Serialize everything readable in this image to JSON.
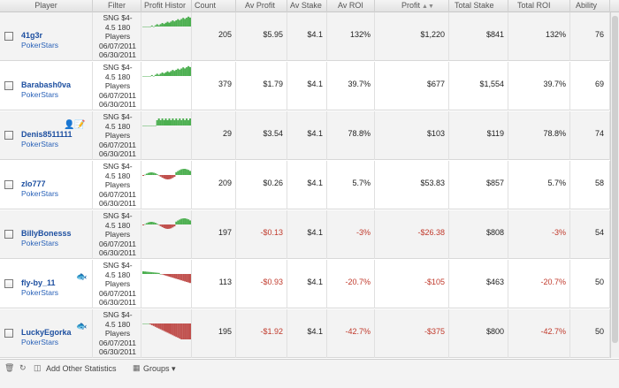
{
  "columns": {
    "player": "Player",
    "filter": "Filter",
    "profit_history": "Profit Histor",
    "count": "Count",
    "av_profit": "Av Profit",
    "av_stake": "Av Stake",
    "av_roi": "Av ROI",
    "profit": "Profit",
    "total_stake": "Total Stake",
    "total_roi": "Total ROI",
    "ability": "Ability"
  },
  "rows": [
    {
      "name": "41g3r",
      "site": "PokerStars",
      "filter": [
        "SNG $4-",
        "4.5 180",
        "Players",
        "06/07/2011",
        "06/30/2011"
      ],
      "count": "205",
      "av_profit": "$5.95",
      "av_stake": "$4.1",
      "av_roi": "132%",
      "profit": "$1,220",
      "total_stake": "$841",
      "total_roi": "132%",
      "ability": "76",
      "negative": false,
      "icons": []
    },
    {
      "name": "Barabash0va",
      "site": "PokerStars",
      "filter": [
        "SNG $4-",
        "4.5 180",
        "Players",
        "06/07/2011",
        "06/30/2011"
      ],
      "count": "379",
      "av_profit": "$1.79",
      "av_stake": "$4.1",
      "av_roi": "39.7%",
      "profit": "$677",
      "total_stake": "$1,554",
      "total_roi": "39.7%",
      "ability": "69",
      "negative": false,
      "icons": []
    },
    {
      "name": "Denis8511111",
      "site": "PokerStars",
      "filter": [
        "SNG $4-",
        "4.5 180",
        "Players",
        "06/07/2011",
        "06/30/2011"
      ],
      "count": "29",
      "av_profit": "$3.54",
      "av_stake": "$4.1",
      "av_roi": "78.8%",
      "profit": "$103",
      "total_stake": "$119",
      "total_roi": "78.8%",
      "ability": "74",
      "negative": false,
      "icons": [
        "person-icon",
        "note-icon"
      ]
    },
    {
      "name": "zlo777",
      "site": "PokerStars",
      "filter": [
        "SNG $4-",
        "4.5 180",
        "Players",
        "06/07/2011",
        "06/30/2011"
      ],
      "count": "209",
      "av_profit": "$0.26",
      "av_stake": "$4.1",
      "av_roi": "5.7%",
      "profit": "$53.83",
      "total_stake": "$857",
      "total_roi": "5.7%",
      "ability": "58",
      "negative": false,
      "icons": []
    },
    {
      "name": "BillyBonesss",
      "site": "PokerStars",
      "filter": [
        "SNG $4-",
        "4.5 180",
        "Players",
        "06/07/2011",
        "06/30/2011"
      ],
      "count": "197",
      "av_profit": "-$0.13",
      "av_stake": "$4.1",
      "av_roi": "-3%",
      "profit": "-$26.38",
      "total_stake": "$808",
      "total_roi": "-3%",
      "ability": "54",
      "negative": true,
      "icons": []
    },
    {
      "name": "fly-by_11",
      "site": "PokerStars",
      "filter": [
        "SNG $4-",
        "4.5 180",
        "Players",
        "06/07/2011",
        "06/30/2011"
      ],
      "count": "113",
      "av_profit": "-$0.93",
      "av_stake": "$4.1",
      "av_roi": "-20.7%",
      "profit": "-$105",
      "total_stake": "$463",
      "total_roi": "-20.7%",
      "ability": "50",
      "negative": true,
      "icons": [
        "fish-icon"
      ]
    },
    {
      "name": "LuckyEgorka",
      "site": "PokerStars",
      "filter": [
        "SNG $4-",
        "4.5 180",
        "Players",
        "06/07/2011",
        "06/30/2011"
      ],
      "count": "195",
      "av_profit": "-$1.92",
      "av_stake": "$4.1",
      "av_roi": "-42.7%",
      "profit": "-$375",
      "total_stake": "$800",
      "total_roi": "-42.7%",
      "ability": "50",
      "negative": true,
      "icons": [
        "fish-icon"
      ]
    }
  ],
  "footer": {
    "add_stats": "Add Other Statistics",
    "groups": "Groups"
  },
  "colors": {
    "positive": "#4caf50",
    "negative": "#c0504d",
    "link": "#1d4fa0",
    "neg_text": "#c0392b"
  }
}
